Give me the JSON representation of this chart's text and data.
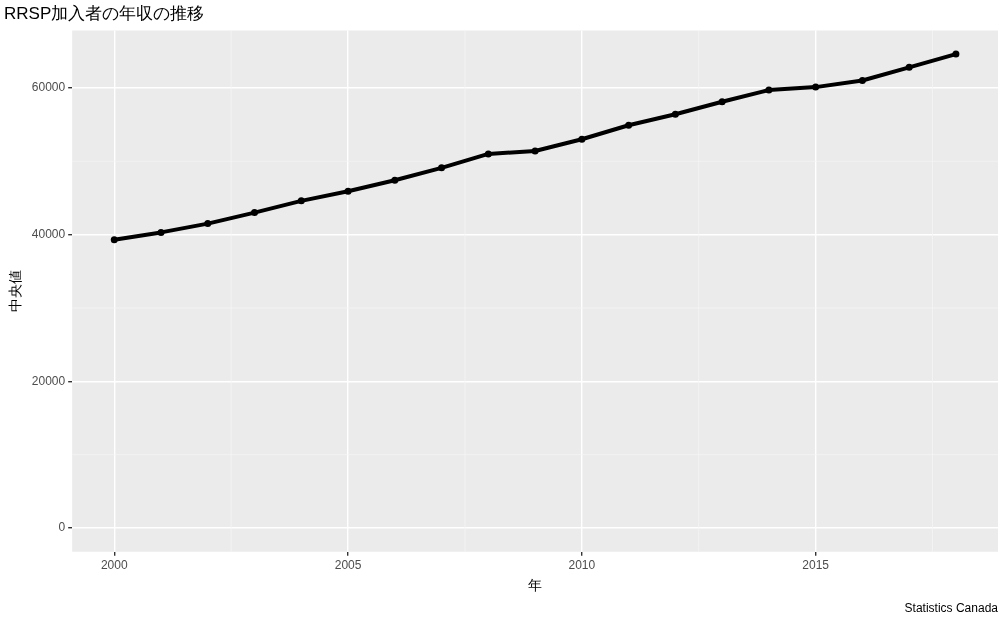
{
  "chart_data": {
    "type": "line",
    "title": "RRSP加入者の年収の推移",
    "xlabel": "年",
    "ylabel": "中央値",
    "annotations": [
      "Statistics Canada"
    ],
    "x": [
      2000,
      2001,
      2002,
      2003,
      2004,
      2005,
      2006,
      2007,
      2008,
      2009,
      2010,
      2011,
      2012,
      2013,
      2014,
      2015,
      2016,
      2017,
      2018
    ],
    "series": [
      {
        "color": "#000000",
        "values": [
          39300,
          40300,
          41500,
          43000,
          44600,
          45900,
          47400,
          49100,
          51000,
          51400,
          53000,
          54900,
          56400,
          58100,
          59700,
          60100,
          61000,
          62800,
          64600
        ]
      }
    ],
    "xlim": [
      1999.1,
      2018.9
    ],
    "xticks": [
      2000,
      2005,
      2010,
      2015
    ],
    "ylim": [
      -3230,
      67830
    ],
    "yticks": [
      0,
      20000,
      40000,
      60000
    ],
    "grid": true,
    "legend": false,
    "marker": "circle",
    "line_style": "solid"
  }
}
